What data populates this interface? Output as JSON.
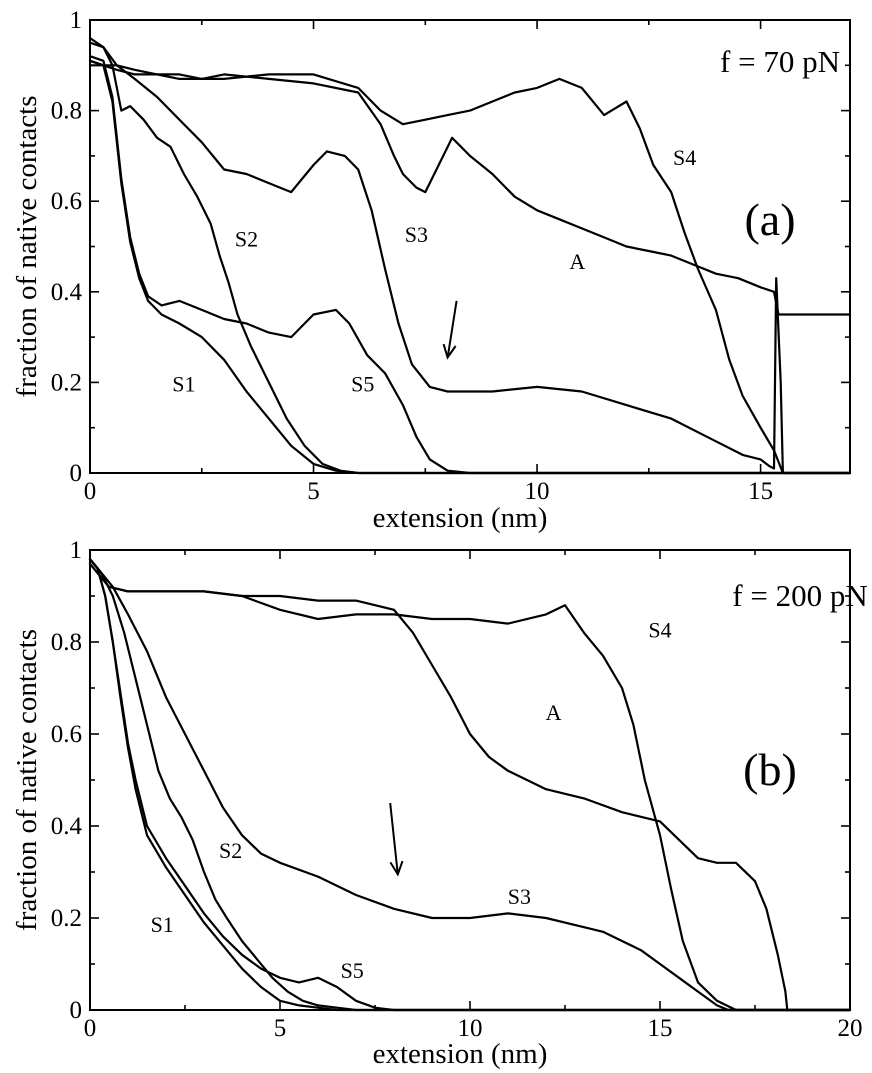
{
  "chart_data": [
    {
      "type": "line",
      "panel": "(a)",
      "force_label": "f = 70 pN",
      "xlabel": "extension (nm)",
      "ylabel": "fraction of native contacts",
      "xlim": [
        0,
        17
      ],
      "ylim": [
        0,
        1
      ],
      "xticks": [
        0,
        5,
        10,
        15
      ],
      "xtick_labels": [
        "0",
        "5",
        "10",
        "15"
      ],
      "yticks": [
        0,
        0.2,
        0.4,
        0.6,
        0.8,
        1
      ],
      "ytick_labels": [
        "0",
        "0.2",
        "0.4",
        "0.6",
        "0.8",
        "1"
      ],
      "curve_labels": [
        {
          "text": "S1",
          "x": 2.1,
          "y": 0.18,
          "color": "#000000"
        },
        {
          "text": "S2",
          "x": 3.5,
          "y": 0.5,
          "color": "#000000"
        },
        {
          "text": "S3",
          "x": 7.3,
          "y": 0.51,
          "color": "#000000"
        },
        {
          "text": "S5",
          "x": 6.1,
          "y": 0.18,
          "color": "#000000"
        },
        {
          "text": "A",
          "x": 10.9,
          "y": 0.45,
          "color": "#000000"
        },
        {
          "text": "S4",
          "x": 13.3,
          "y": 0.68,
          "color": "#6b1a4a"
        }
      ],
      "arrow": {
        "from": [
          8.2,
          0.38
        ],
        "to": [
          8.0,
          0.255
        ]
      },
      "series": [
        {
          "name": "S1",
          "x": [
            0,
            0.3,
            0.5,
            0.7,
            0.9,
            1.1,
            1.3,
            1.6,
            2.0,
            2.5,
            3.0,
            3.5,
            4.0,
            4.5,
            5.0,
            5.5,
            6.0,
            7.0,
            17
          ],
          "y": [
            0.91,
            0.9,
            0.82,
            0.64,
            0.51,
            0.43,
            0.38,
            0.35,
            0.33,
            0.3,
            0.25,
            0.18,
            0.12,
            0.06,
            0.02,
            0.005,
            0.0,
            0.0,
            0.0
          ]
        },
        {
          "name": "S5",
          "x": [
            0,
            0.3,
            0.5,
            0.7,
            0.9,
            1.1,
            1.3,
            1.6,
            2.0,
            2.5,
            3.0,
            3.5,
            4.0,
            4.5,
            5.0,
            5.5,
            5.8,
            6.2,
            6.6,
            7.0,
            7.3,
            7.6,
            8.0,
            8.5,
            17
          ],
          "y": [
            0.92,
            0.91,
            0.83,
            0.65,
            0.52,
            0.44,
            0.39,
            0.37,
            0.38,
            0.36,
            0.34,
            0.33,
            0.31,
            0.3,
            0.35,
            0.36,
            0.33,
            0.26,
            0.22,
            0.15,
            0.08,
            0.03,
            0.005,
            0.0,
            0.0
          ]
        },
        {
          "name": "S2",
          "x": [
            0,
            0.3,
            0.5,
            0.7,
            0.9,
            1.2,
            1.5,
            1.8,
            2.1,
            2.4,
            2.7,
            2.9,
            3.1,
            3.3,
            3.6,
            4.0,
            4.4,
            4.8,
            5.2,
            5.6,
            6.0,
            17
          ],
          "y": [
            0.96,
            0.94,
            0.9,
            0.8,
            0.81,
            0.78,
            0.74,
            0.72,
            0.66,
            0.61,
            0.55,
            0.48,
            0.42,
            0.35,
            0.28,
            0.2,
            0.12,
            0.06,
            0.02,
            0.005,
            0.0,
            0.0
          ]
        },
        {
          "name": "S3",
          "x": [
            0,
            0.3,
            0.6,
            1.0,
            1.5,
            2.0,
            2.5,
            3.0,
            3.5,
            4.0,
            4.5,
            5.0,
            5.3,
            5.7,
            6.0,
            6.3,
            6.6,
            6.9,
            7.2,
            7.6,
            8.0,
            9.0,
            10.0,
            11.0,
            12.0,
            13.0,
            14.0,
            14.6,
            15.0,
            15.2,
            15.3,
            15.35,
            15.45,
            15.5,
            17
          ],
          "y": [
            0.95,
            0.94,
            0.9,
            0.87,
            0.83,
            0.78,
            0.73,
            0.67,
            0.66,
            0.64,
            0.62,
            0.68,
            0.71,
            0.7,
            0.67,
            0.58,
            0.45,
            0.33,
            0.24,
            0.19,
            0.18,
            0.18,
            0.19,
            0.18,
            0.15,
            0.12,
            0.07,
            0.04,
            0.03,
            0.015,
            0.01,
            0.43,
            0.2,
            0.0,
            0.0
          ]
        },
        {
          "name": "A",
          "x": [
            0,
            0.3,
            0.6,
            1.0,
            1.5,
            2.0,
            2.5,
            3.0,
            4.0,
            5.0,
            6.0,
            6.5,
            6.8,
            7.0,
            7.3,
            7.5,
            7.8,
            8.1,
            8.5,
            9.0,
            9.5,
            10.0,
            10.5,
            11.0,
            11.5,
            12.0,
            12.5,
            13.0,
            13.5,
            14.0,
            14.5,
            15.0,
            15.3,
            15.4,
            17
          ],
          "y": [
            0.91,
            0.9,
            0.9,
            0.89,
            0.88,
            0.87,
            0.87,
            0.88,
            0.87,
            0.86,
            0.84,
            0.77,
            0.7,
            0.66,
            0.63,
            0.62,
            0.68,
            0.74,
            0.7,
            0.66,
            0.61,
            0.58,
            0.56,
            0.54,
            0.52,
            0.5,
            0.49,
            0.48,
            0.46,
            0.44,
            0.43,
            0.41,
            0.4,
            0.35,
            0.35
          ]
        },
        {
          "name": "S4",
          "x": [
            0,
            0.3,
            0.6,
            1.0,
            1.5,
            2.0,
            2.5,
            3.0,
            4.0,
            5.0,
            6.0,
            6.5,
            7.0,
            7.5,
            8.0,
            8.5,
            9.0,
            9.5,
            10.0,
            10.5,
            11.0,
            11.5,
            12.0,
            12.3,
            12.6,
            13.0,
            13.3,
            13.6,
            14.0,
            14.3,
            14.6,
            15.0,
            15.3,
            15.5,
            17
          ],
          "y": [
            0.9,
            0.9,
            0.89,
            0.88,
            0.88,
            0.88,
            0.87,
            0.87,
            0.88,
            0.88,
            0.85,
            0.8,
            0.77,
            0.78,
            0.79,
            0.8,
            0.82,
            0.84,
            0.85,
            0.87,
            0.85,
            0.79,
            0.82,
            0.76,
            0.68,
            0.62,
            0.53,
            0.45,
            0.36,
            0.25,
            0.17,
            0.1,
            0.05,
            0.0,
            0.0
          ]
        }
      ]
    },
    {
      "type": "line",
      "panel": "(b)",
      "force_label": "f = 200 pN",
      "xlabel": "extension (nm)",
      "ylabel": "fraction of native contacts",
      "xlim": [
        0,
        20
      ],
      "ylim": [
        0,
        1
      ],
      "xticks": [
        0,
        5,
        10,
        15,
        20
      ],
      "xtick_labels": [
        "0",
        "5",
        "10",
        "15",
        "20"
      ],
      "yticks": [
        0,
        0.2,
        0.4,
        0.6,
        0.8,
        1
      ],
      "ytick_labels": [
        "0",
        "0.2",
        "0.4",
        "0.6",
        "0.8",
        "1"
      ],
      "curve_labels": [
        {
          "text": "S1",
          "x": 1.9,
          "y": 0.17,
          "color": "#000000"
        },
        {
          "text": "S2",
          "x": 3.7,
          "y": 0.33,
          "color": "#000000"
        },
        {
          "text": "S5",
          "x": 6.9,
          "y": 0.07,
          "color": "#000000"
        },
        {
          "text": "S3",
          "x": 11.3,
          "y": 0.23,
          "color": "#000000"
        },
        {
          "text": "A",
          "x": 12.2,
          "y": 0.63,
          "color": "#000000"
        },
        {
          "text": "S4",
          "x": 15.0,
          "y": 0.81,
          "color": "#000000"
        }
      ],
      "arrow": {
        "from": [
          7.9,
          0.45
        ],
        "to": [
          8.1,
          0.295
        ]
      },
      "series": [
        {
          "name": "S1",
          "x": [
            0,
            0.2,
            0.4,
            0.6,
            0.8,
            1.0,
            1.2,
            1.5,
            2.0,
            2.5,
            3.0,
            3.5,
            4.0,
            4.5,
            5.0,
            5.5,
            6.0,
            6.5,
            7.0,
            20
          ],
          "y": [
            0.98,
            0.96,
            0.9,
            0.8,
            0.68,
            0.57,
            0.48,
            0.38,
            0.31,
            0.25,
            0.19,
            0.14,
            0.09,
            0.05,
            0.02,
            0.01,
            0.005,
            0.0,
            0.0,
            0.0
          ]
        },
        {
          "name": "S5",
          "x": [
            0,
            0.2,
            0.4,
            0.6,
            0.8,
            1.0,
            1.2,
            1.5,
            2.0,
            2.5,
            3.0,
            3.5,
            4.0,
            4.5,
            5.0,
            5.5,
            6.0,
            6.5,
            7.0,
            7.5,
            8.0,
            20
          ],
          "y": [
            0.98,
            0.96,
            0.9,
            0.8,
            0.69,
            0.58,
            0.5,
            0.4,
            0.33,
            0.27,
            0.21,
            0.16,
            0.12,
            0.09,
            0.07,
            0.06,
            0.07,
            0.05,
            0.02,
            0.005,
            0.0,
            0.0
          ]
        },
        {
          "name": "S2",
          "x": [
            0,
            0.3,
            0.6,
            0.9,
            1.2,
            1.5,
            1.8,
            2.1,
            2.4,
            2.7,
            3.0,
            3.3,
            3.6,
            4.0,
            4.4,
            4.8,
            5.2,
            5.6,
            6.0,
            6.5,
            7.0,
            8.0,
            20
          ],
          "y": [
            0.98,
            0.95,
            0.9,
            0.82,
            0.72,
            0.62,
            0.52,
            0.46,
            0.42,
            0.37,
            0.3,
            0.24,
            0.2,
            0.15,
            0.11,
            0.07,
            0.04,
            0.02,
            0.01,
            0.005,
            0.0,
            0.0,
            0.0
          ]
        },
        {
          "name": "S3",
          "x": [
            0,
            0.3,
            0.6,
            1.0,
            1.5,
            2.0,
            2.5,
            3.0,
            3.5,
            4.0,
            4.5,
            5.0,
            6.0,
            7.0,
            8.0,
            9.0,
            10.0,
            11.0,
            12.0,
            13.0,
            13.5,
            14.0,
            14.5,
            15.0,
            15.5,
            16.0,
            16.5,
            16.8,
            20
          ],
          "y": [
            0.98,
            0.95,
            0.92,
            0.86,
            0.78,
            0.68,
            0.6,
            0.52,
            0.44,
            0.38,
            0.34,
            0.32,
            0.29,
            0.25,
            0.22,
            0.2,
            0.2,
            0.21,
            0.2,
            0.18,
            0.17,
            0.15,
            0.13,
            0.1,
            0.07,
            0.04,
            0.01,
            0.0,
            0.0
          ]
        },
        {
          "name": "A",
          "x": [
            0,
            0.5,
            1.0,
            2.0,
            3.0,
            4.0,
            5.0,
            6.0,
            7.0,
            8.0,
            8.5,
            9.0,
            9.5,
            10.0,
            10.5,
            11.0,
            11.5,
            12.0,
            13.0,
            14.0,
            15.0,
            15.5,
            16.0,
            16.5,
            17.0,
            17.5,
            17.8,
            18.1,
            18.3,
            18.35,
            20
          ],
          "y": [
            0.97,
            0.92,
            0.91,
            0.91,
            0.91,
            0.9,
            0.9,
            0.89,
            0.89,
            0.87,
            0.82,
            0.75,
            0.68,
            0.6,
            0.55,
            0.52,
            0.5,
            0.48,
            0.46,
            0.43,
            0.41,
            0.37,
            0.33,
            0.32,
            0.32,
            0.28,
            0.22,
            0.12,
            0.04,
            0.0,
            0.0
          ]
        },
        {
          "name": "S4",
          "x": [
            0,
            0.5,
            1.0,
            2.0,
            3.0,
            4.0,
            5.0,
            6.0,
            7.0,
            8.0,
            9.0,
            10.0,
            11.0,
            12.0,
            12.5,
            13.0,
            13.5,
            14.0,
            14.3,
            14.6,
            15.0,
            15.3,
            15.6,
            16.0,
            16.5,
            17.0,
            20
          ],
          "y": [
            0.97,
            0.92,
            0.91,
            0.91,
            0.91,
            0.9,
            0.87,
            0.85,
            0.86,
            0.86,
            0.85,
            0.85,
            0.84,
            0.86,
            0.88,
            0.82,
            0.77,
            0.7,
            0.62,
            0.5,
            0.38,
            0.26,
            0.15,
            0.06,
            0.02,
            0.0,
            0.0
          ]
        }
      ]
    }
  ]
}
